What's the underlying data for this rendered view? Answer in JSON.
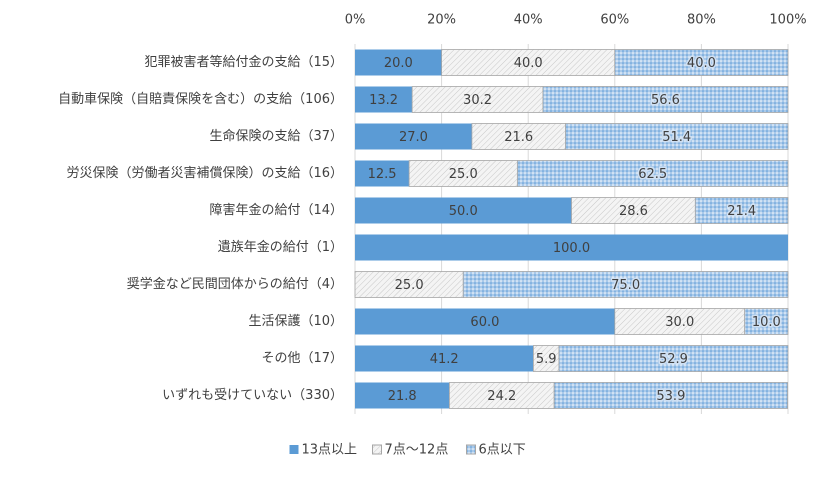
{
  "chart_data": {
    "type": "stacked-barh",
    "categories": [
      "犯罪被害者等給付金の支給（15）",
      "自動車保険（自賠責保険を含む）の支給（106）",
      "生命保険の支給（37）",
      "労災保険（労働者災害補償保険）の支給（16）",
      "障害年金の給付（14）",
      "遺族年金の給付（1）",
      "奨学金など民間団体からの給付（4）",
      "生活保護（10）",
      "その他（17）",
      "いずれも受けていない（330）"
    ],
    "series": [
      {
        "name": "13点以上",
        "color": "#5b9bd5",
        "pattern": "solid",
        "values": [
          20,
          13.2,
          27,
          12.5,
          50,
          100,
          null,
          60,
          41.2,
          21.8
        ],
        "value_labels": [
          "20.0",
          "13.2",
          "27.0",
          "12.5",
          "50.0",
          "100.0",
          null,
          "60.0",
          "41.2",
          "21.8"
        ]
      },
      {
        "name": "7点～12点",
        "color": "#d9d9d9",
        "pattern": "hatch",
        "values": [
          40,
          30.2,
          21.6,
          25,
          28.6,
          null,
          25,
          30,
          5.9,
          24.2
        ],
        "value_labels": [
          "40.0",
          "30.2",
          "21.6",
          "25.0",
          "28.6",
          null,
          "25.0",
          "30.0",
          "5.9",
          "24.2"
        ]
      },
      {
        "name": "6点以下",
        "color": "#5b9bd5",
        "pattern": "dots",
        "values": [
          40,
          56.6,
          51.4,
          62.5,
          21.4,
          null,
          75,
          10,
          52.9,
          53.9
        ],
        "value_labels": [
          "40.0",
          "56.6",
          "51.4",
          "62.5",
          "21.4",
          null,
          "75.0",
          "10.0",
          "52.9",
          "53.9"
        ]
      }
    ],
    "xlim": [
      0,
      100
    ],
    "xticks": [
      {
        "value": 0,
        "label": "0%"
      },
      {
        "value": 20,
        "label": "20%"
      },
      {
        "value": 40,
        "label": "40%"
      },
      {
        "value": 60,
        "label": "60%"
      },
      {
        "value": 80,
        "label": "80%"
      },
      {
        "value": 100,
        "label": "100%"
      }
    ],
    "grid": true,
    "legend": "bottom"
  }
}
